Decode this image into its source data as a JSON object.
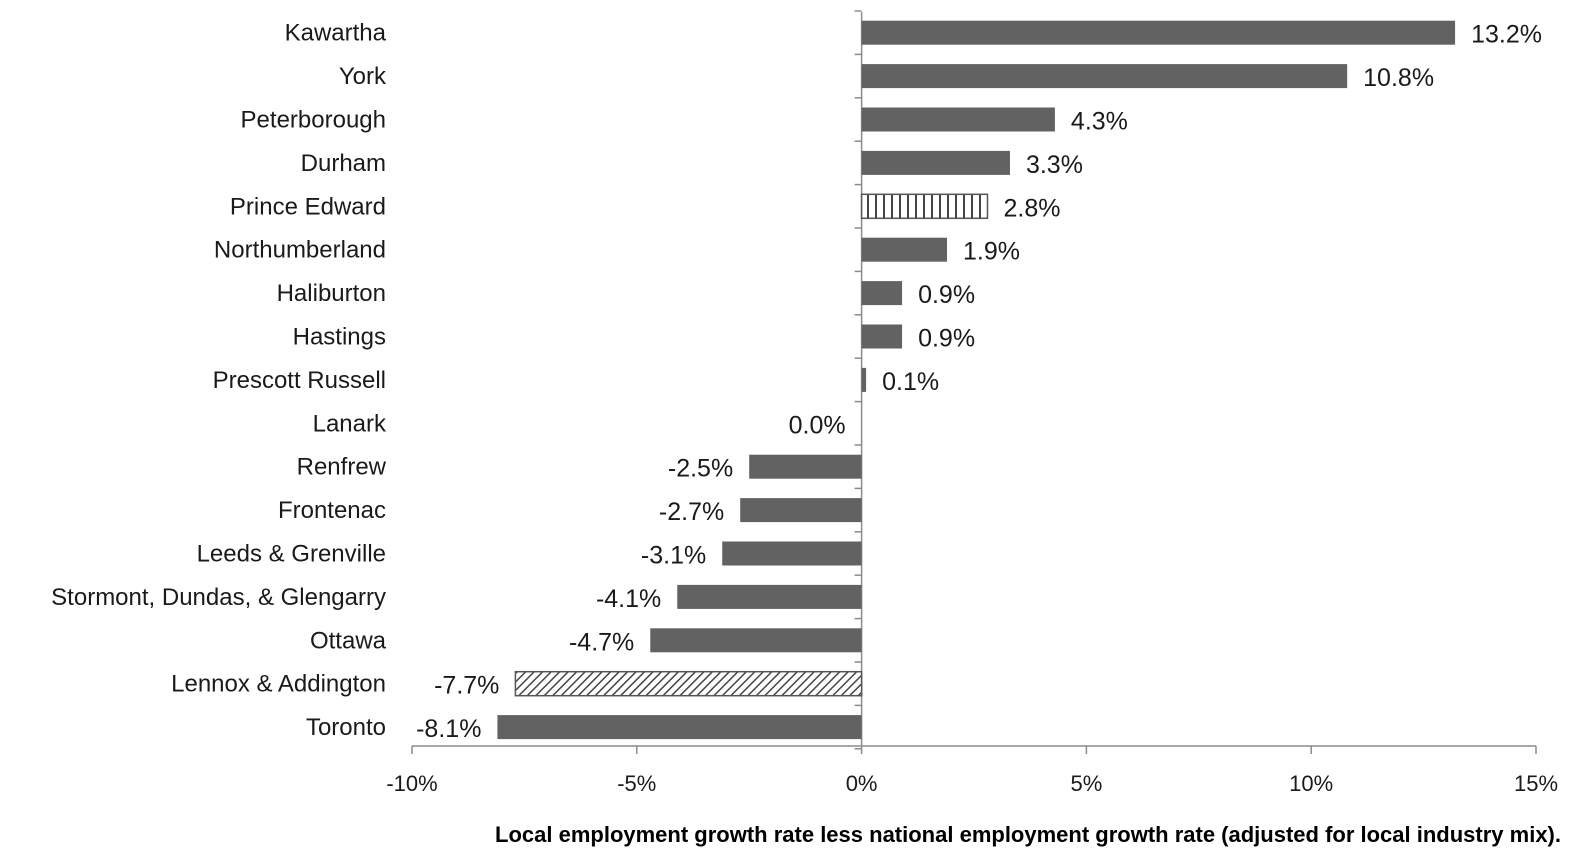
{
  "chart_data": {
    "type": "bar",
    "orientation": "horizontal",
    "categories": [
      "Kawartha",
      "York",
      "Peterborough",
      "Durham",
      "Prince Edward",
      "Northumberland",
      "Haliburton",
      "Hastings",
      "Prescott Russell",
      "Lanark",
      "Renfrew",
      "Frontenac",
      "Leeds & Grenville",
      "Stormont, Dundas, & Glengarry",
      "Ottawa",
      "Lennox & Addington",
      "Toronto"
    ],
    "values": [
      13.2,
      10.8,
      4.3,
      3.3,
      2.8,
      1.9,
      0.9,
      0.9,
      0.1,
      0.0,
      -2.5,
      -2.7,
      -3.1,
      -4.1,
      -4.7,
      -7.7,
      -8.1
    ],
    "data_labels": [
      "13.2%",
      "10.8%",
      "4.3%",
      "3.3%",
      "2.8%",
      "1.9%",
      "0.9%",
      "0.9%",
      "0.1%",
      "0.0%",
      "-2.5%",
      "-2.7%",
      "-3.1%",
      "-4.1%",
      "-4.7%",
      "-7.7%",
      "-8.1%"
    ],
    "bar_fill": [
      "solid",
      "solid",
      "solid",
      "solid",
      "vertical-hatch",
      "solid",
      "solid",
      "solid",
      "solid",
      "solid",
      "solid",
      "solid",
      "solid",
      "solid",
      "solid",
      "diagonal-hatch",
      "solid"
    ],
    "xlabel": "Local employment growth rate less national employment growth rate (adjusted for local industry mix).",
    "ylabel": "",
    "title": "",
    "xlim": [
      -10,
      15
    ],
    "xticks": [
      -10,
      -5,
      0,
      5,
      10,
      15
    ],
    "xtick_labels": [
      "-10%",
      "-5%",
      "0%",
      "5%",
      "10%",
      "15%"
    ],
    "grid": false,
    "legend": false,
    "colors": {
      "bar": "#626262",
      "hatch_stroke": "#555555",
      "axis": "#8c8c8c",
      "text": "#1a1a1a"
    }
  }
}
